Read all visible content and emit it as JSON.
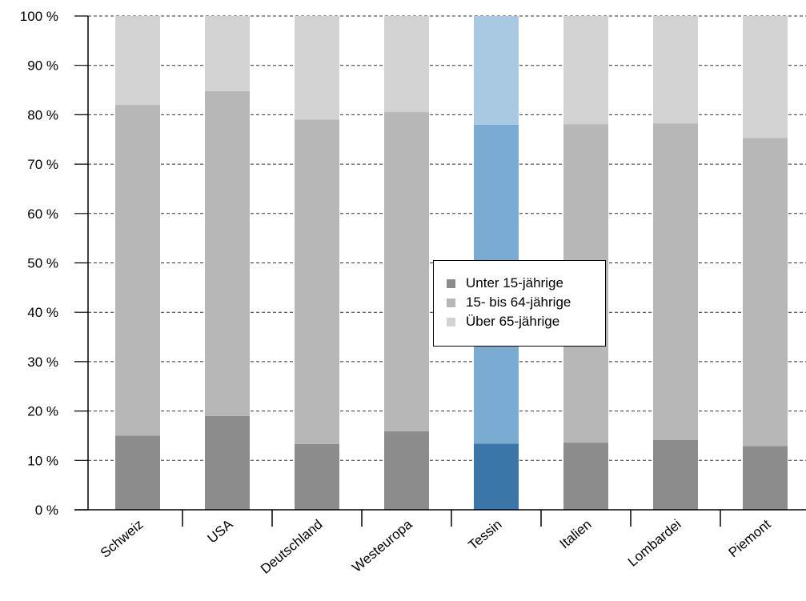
{
  "chart_data": {
    "type": "bar",
    "stacked": true,
    "normalized": true,
    "categories": [
      "Schweiz",
      "USA",
      "Deutschland",
      "Westeuropa",
      "Tessin",
      "Italien",
      "Lombardei",
      "Piemont"
    ],
    "series": [
      {
        "name": "Unter 15-jährige",
        "values": [
          15,
          19,
          13.3,
          15.9,
          13.4,
          13.6,
          14.1,
          12.9
        ]
      },
      {
        "name": "15- bis 64-jährige",
        "values": [
          67,
          65.8,
          65.7,
          64.7,
          64.6,
          64.5,
          64.1,
          62.4
        ]
      },
      {
        "name": "Über 65-jährige",
        "values": [
          18,
          15.2,
          21,
          19.4,
          22,
          21.9,
          21.8,
          24.7
        ]
      }
    ],
    "series_colors": [
      "#8c8c8c",
      "#b7b7b7",
      "#d2d2d2"
    ],
    "highlight": {
      "category": "Tessin",
      "colors": [
        "#3a77a8",
        "#7aabd3",
        "#a9c9e3"
      ]
    },
    "ylim": [
      0,
      100
    ],
    "y_ticks": [
      "0 %",
      "10 %",
      "20 %",
      "30 %",
      "40 %",
      "50 %",
      "60 %",
      "70 %",
      "80 %",
      "90 %",
      "100 %"
    ],
    "grid": true,
    "legend_position": "center"
  }
}
